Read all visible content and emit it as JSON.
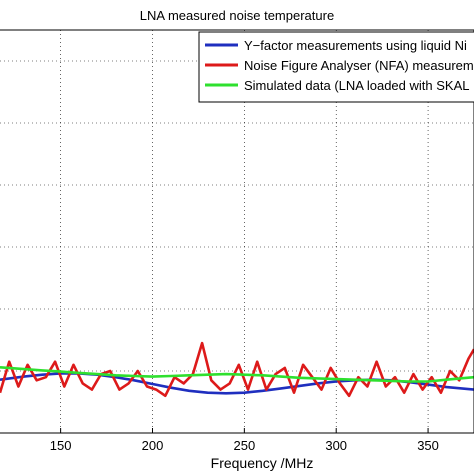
{
  "chart_data": {
    "type": "line",
    "title": "LNA measured noise temperature",
    "xlabel": "Frequency /MHz",
    "ylabel": "",
    "xlim": [
      117,
      375
    ],
    "ylim": [
      0,
      65
    ],
    "xticks": [
      150,
      200,
      250,
      300,
      350
    ],
    "grid": true,
    "legend_position": "top-right",
    "series": [
      {
        "name": "Y−factor measurements using liquid Ni",
        "color": "#1f2fbf",
        "x": [
          117,
          130,
          140,
          150,
          160,
          170,
          180,
          190,
          200,
          210,
          220,
          230,
          240,
          250,
          260,
          270,
          280,
          290,
          300,
          310,
          320,
          330,
          340,
          350,
          360,
          375
        ],
        "y": [
          8.6,
          9.1,
          9.4,
          9.6,
          9.6,
          9.4,
          9.0,
          8.5,
          7.9,
          7.3,
          6.8,
          6.5,
          6.4,
          6.5,
          6.8,
          7.2,
          7.6,
          8.0,
          8.3,
          8.5,
          8.6,
          8.5,
          8.2,
          7.8,
          7.4,
          7.0
        ]
      },
      {
        "name": "Noise Figure Analyser (NFA) measurem",
        "color": "#dd1a1a",
        "x": [
          117,
          122,
          127,
          132,
          137,
          142,
          147,
          152,
          157,
          162,
          167,
          172,
          177,
          182,
          187,
          192,
          197,
          202,
          207,
          212,
          217,
          222,
          227,
          232,
          237,
          242,
          247,
          252,
          257,
          262,
          267,
          272,
          277,
          282,
          287,
          292,
          297,
          302,
          307,
          312,
          317,
          322,
          327,
          332,
          337,
          342,
          347,
          352,
          357,
          362,
          367,
          372,
          375
        ],
        "y": [
          6.5,
          11.5,
          7.5,
          11.0,
          8.5,
          9.0,
          11.5,
          7.5,
          11.0,
          8.0,
          7.0,
          9.5,
          10.0,
          7.0,
          8.0,
          10.0,
          7.5,
          7.0,
          6.0,
          9.0,
          8.0,
          9.5,
          14.5,
          8.5,
          7.0,
          8.0,
          11.0,
          7.0,
          11.5,
          7.0,
          9.5,
          10.5,
          6.5,
          11.0,
          9.0,
          7.0,
          10.5,
          8.0,
          6.0,
          9.0,
          7.5,
          11.5,
          7.5,
          9.0,
          6.5,
          9.5,
          7.0,
          9.0,
          6.5,
          10.0,
          8.5,
          12.0,
          13.5
        ]
      },
      {
        "name": "Simulated data (LNA loaded with SKAL",
        "color": "#2ee02e",
        "x": [
          117,
          130,
          140,
          150,
          160,
          170,
          180,
          190,
          200,
          210,
          220,
          230,
          240,
          250,
          260,
          270,
          280,
          290,
          300,
          310,
          320,
          330,
          340,
          350,
          360,
          375
        ],
        "y": [
          10.6,
          10.3,
          10.1,
          9.9,
          9.7,
          9.5,
          9.3,
          9.2,
          9.1,
          9.2,
          9.3,
          9.4,
          9.5,
          9.4,
          9.3,
          9.1,
          8.9,
          8.8,
          8.7,
          8.6,
          8.5,
          8.4,
          8.3,
          8.3,
          8.6,
          9.0
        ]
      }
    ]
  }
}
